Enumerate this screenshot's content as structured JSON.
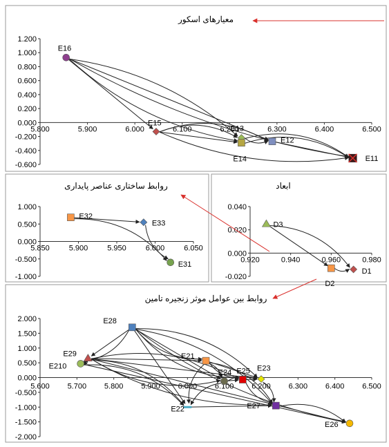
{
  "chart_data": [
    {
      "id": "scoring",
      "type": "scatter",
      "title": "معیارهای اسکور",
      "xlim": [
        5.8,
        6.5
      ],
      "ylim": [
        -0.6,
        1.2
      ],
      "xticks": [
        "5.800",
        "5.900",
        "6.000",
        "6.100",
        "6.200",
        "6.300",
        "6.400",
        "6.500"
      ],
      "yticks": [
        "1.200",
        "1.000",
        "0.800",
        "0.600",
        "0.400",
        "0.200",
        "0.000",
        "-0.200",
        "-0.400",
        "-0.600"
      ],
      "points": [
        {
          "label": "E16",
          "x": 5.855,
          "y": 0.93,
          "color": "#8e3f8e",
          "shape": "circle"
        },
        {
          "label": "E15",
          "x": 6.045,
          "y": -0.13,
          "color": "#c0504d",
          "shape": "diamond"
        },
        {
          "label": "E13",
          "x": 6.225,
          "y": -0.22,
          "color": "#9bbb59",
          "shape": "diamond"
        },
        {
          "label": "E14",
          "x": 6.225,
          "y": -0.29,
          "color": "#b5a642",
          "shape": "square"
        },
        {
          "label": "E12",
          "x": 6.29,
          "y": -0.27,
          "color": "#7f8fbf",
          "shape": "square"
        },
        {
          "label": "E11",
          "x": 6.46,
          "y": -0.51,
          "color": "#3a1a1a",
          "shape": "xsquare"
        }
      ],
      "links": [
        [
          "E16",
          "E15"
        ],
        [
          "E16",
          "E13"
        ],
        [
          "E16",
          "E14"
        ],
        [
          "E16",
          "E12"
        ],
        [
          "E16",
          "E11"
        ],
        [
          "E15",
          "E13"
        ],
        [
          "E15",
          "E14"
        ],
        [
          "E15",
          "E12"
        ],
        [
          "E15",
          "E11"
        ],
        [
          "E13",
          "E14"
        ],
        [
          "E13",
          "E12"
        ],
        [
          "E13",
          "E11"
        ],
        [
          "E12",
          "E11"
        ],
        [
          "E14",
          "E11"
        ]
      ]
    },
    {
      "id": "structural",
      "type": "scatter",
      "title": "روابط ساختاری عناصر پایداری",
      "xlim": [
        5.85,
        6.05
      ],
      "ylim": [
        -1.0,
        1.0
      ],
      "xticks": [
        "5.850",
        "5.900",
        "5.950",
        "6.000",
        "6.050"
      ],
      "yticks": [
        "1.000",
        "0.500",
        "0.000",
        "-0.500",
        "-1.000"
      ],
      "points": [
        {
          "label": "E32",
          "x": 5.89,
          "y": 0.69,
          "color": "#f79646",
          "shape": "square"
        },
        {
          "label": "E33",
          "x": 5.985,
          "y": 0.55,
          "color": "#4f81bd",
          "shape": "diamond"
        },
        {
          "label": "E31",
          "x": 6.02,
          "y": -0.6,
          "color": "#77a34e",
          "shape": "circle"
        }
      ],
      "links": [
        [
          "E32",
          "E33"
        ],
        [
          "E32",
          "E31"
        ],
        [
          "E33",
          "E31"
        ]
      ]
    },
    {
      "id": "dimensions",
      "type": "scatter",
      "title": "ابعاد",
      "xlim": [
        0.92,
        0.98
      ],
      "ylim": [
        -0.02,
        0.04
      ],
      "xticks": [
        "0.920",
        "0.940",
        "0.960",
        "0.980"
      ],
      "yticks": [
        "0.040",
        "0.020",
        "0.000",
        "-0.020"
      ],
      "points": [
        {
          "label": "D3",
          "x": 0.928,
          "y": 0.025,
          "color": "#9bbb59",
          "shape": "triangle"
        },
        {
          "label": "D2",
          "x": 0.96,
          "y": -0.013,
          "color": "#f79646",
          "shape": "square"
        },
        {
          "label": "D1",
          "x": 0.971,
          "y": -0.014,
          "color": "#c0504d",
          "shape": "diamond"
        }
      ],
      "links": [
        [
          "D3",
          "D2"
        ],
        [
          "D3",
          "D1"
        ],
        [
          "D2",
          "D1"
        ]
      ]
    },
    {
      "id": "supply",
      "type": "scatter",
      "title": "روابط بین عوامل موثر زنجیره تامین",
      "xlim": [
        5.6,
        6.5
      ],
      "ylim": [
        -2.0,
        2.0
      ],
      "xticks": [
        "5.600",
        "5.700",
        "5.800",
        "5.900",
        "6.000",
        "6.100",
        "6.200",
        "6.300",
        "6.400",
        "6.500"
      ],
      "yticks": [
        "2.000",
        "1.500",
        "1.000",
        "0.500",
        "0.000",
        "-0.500",
        "-1.000",
        "-1.500",
        "-2.000"
      ],
      "points": [
        {
          "label": "E28",
          "x": 5.85,
          "y": 1.7,
          "color": "#4f81bd",
          "shape": "square"
        },
        {
          "label": "E29",
          "x": 5.73,
          "y": 0.65,
          "color": "#c0504d",
          "shape": "triangle"
        },
        {
          "label": "E210",
          "x": 5.71,
          "y": 0.47,
          "color": "#9bbb59",
          "shape": "circle"
        },
        {
          "label": "E21",
          "x": 6.05,
          "y": 0.57,
          "color": "#f79646",
          "shape": "square"
        },
        {
          "label": "E24",
          "x": 6.1,
          "y": -0.12,
          "color": "#6b6b4e",
          "shape": "circle"
        },
        {
          "label": "E25",
          "x": 6.15,
          "y": -0.07,
          "color": "#e00000",
          "shape": "square"
        },
        {
          "label": "E23",
          "x": 6.2,
          "y": -0.05,
          "color": "#e6e600",
          "shape": "diamond"
        },
        {
          "label": "E22",
          "x": 6.0,
          "y": -1.0,
          "color": "#4bacc6",
          "shape": "dash"
        },
        {
          "label": "E27",
          "x": 6.24,
          "y": -0.95,
          "color": "#7030a0",
          "shape": "square"
        },
        {
          "label": "E26",
          "x": 6.44,
          "y": -1.55,
          "color": "#f5b800",
          "shape": "circle"
        }
      ],
      "links": [
        [
          "E28",
          "E29"
        ],
        [
          "E28",
          "E210"
        ],
        [
          "E28",
          "E21"
        ],
        [
          "E28",
          "E24"
        ],
        [
          "E28",
          "E25"
        ],
        [
          "E28",
          "E23"
        ],
        [
          "E28",
          "E22"
        ],
        [
          "E28",
          "E27"
        ],
        [
          "E28",
          "E26"
        ],
        [
          "E29",
          "E21"
        ],
        [
          "E29",
          "E24"
        ],
        [
          "E29",
          "E25"
        ],
        [
          "E29",
          "E23"
        ],
        [
          "E29",
          "E22"
        ],
        [
          "E29",
          "E27"
        ],
        [
          "E29",
          "E26"
        ],
        [
          "E210",
          "E29"
        ],
        [
          "E210",
          "E22"
        ],
        [
          "E210",
          "E26"
        ],
        [
          "E21",
          "E24"
        ],
        [
          "E21",
          "E25"
        ],
        [
          "E21",
          "E23"
        ],
        [
          "E21",
          "E22"
        ],
        [
          "E21",
          "E27"
        ],
        [
          "E24",
          "E25"
        ],
        [
          "E24",
          "E23"
        ],
        [
          "E24",
          "E22"
        ],
        [
          "E25",
          "E23"
        ],
        [
          "E25",
          "E27"
        ],
        [
          "E23",
          "E27"
        ],
        [
          "E22",
          "E27"
        ],
        [
          "E27",
          "E26"
        ]
      ]
    }
  ]
}
